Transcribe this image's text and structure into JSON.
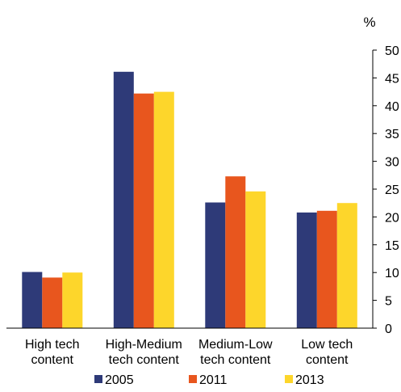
{
  "chart_data": {
    "type": "bar",
    "unit_label": "%",
    "categories": [
      [
        "High tech",
        "content"
      ],
      [
        "High-Medium",
        "tech content"
      ],
      [
        "Medium-Low",
        "tech content"
      ],
      [
        "Low tech",
        "content"
      ]
    ],
    "series": [
      {
        "name": "2005",
        "color": "#2e3a78",
        "values": [
          10.1,
          46.1,
          22.6,
          20.8
        ]
      },
      {
        "name": "2011",
        "color": "#e8561e",
        "values": [
          9.1,
          42.2,
          27.3,
          21.1
        ]
      },
      {
        "name": "2013",
        "color": "#fdd62b",
        "values": [
          10.0,
          42.5,
          24.6,
          22.5
        ]
      }
    ],
    "y_axis": {
      "position": "right",
      "ylim": [
        0,
        50
      ],
      "ticks": [
        "0",
        "5",
        "10",
        "15",
        "20",
        "25",
        "30",
        "35",
        "40",
        "45",
        "50"
      ]
    },
    "grid": false,
    "legend_position": "bottom"
  }
}
